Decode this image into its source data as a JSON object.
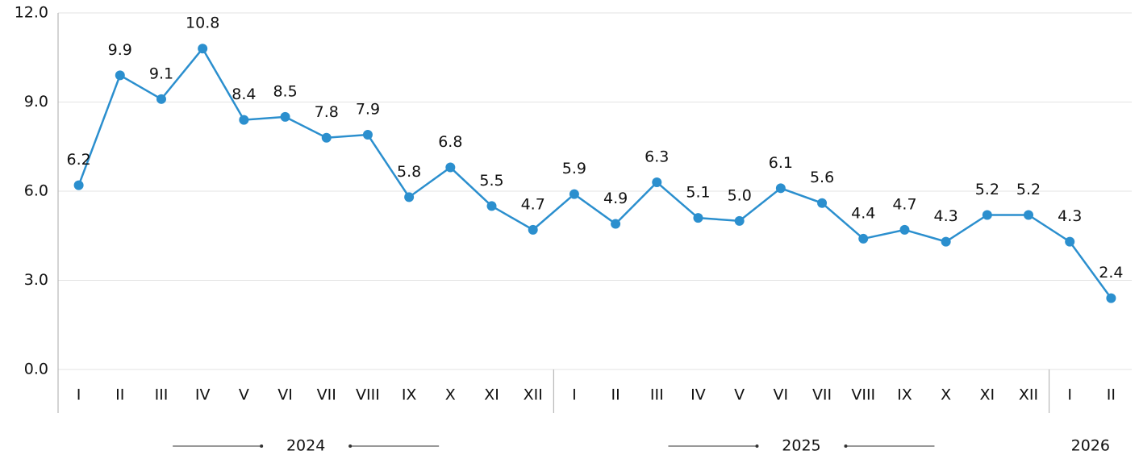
{
  "chart_data": {
    "type": "line",
    "groups": [
      {
        "label": "2024",
        "categories": [
          "I",
          "II",
          "III",
          "IV",
          "V",
          "VI",
          "VII",
          "VIII",
          "IX",
          "X",
          "XI",
          "XII"
        ]
      },
      {
        "label": "2025",
        "categories": [
          "I",
          "II",
          "III",
          "IV",
          "V",
          "VI",
          "VII",
          "VIII",
          "IX",
          "X",
          "XI",
          "XII"
        ]
      },
      {
        "label": "2026",
        "categories": [
          "I",
          "II"
        ]
      }
    ],
    "values": [
      6.2,
      9.9,
      9.1,
      10.8,
      8.4,
      8.5,
      7.8,
      7.9,
      5.8,
      6.8,
      5.5,
      4.7,
      5.9,
      4.9,
      6.3,
      5.1,
      5.0,
      6.1,
      5.6,
      4.4,
      4.7,
      4.3,
      5.2,
      5.2,
      4.3,
      2.4
    ],
    "value_labels": [
      "6.2",
      "9.9",
      "9.1",
      "10.8",
      "8.4",
      "8.5",
      "7.8",
      "7.9",
      "5.8",
      "6.8",
      "5.5",
      "4.7",
      "5.9",
      "4.9",
      "6.3",
      "5.1",
      "5.0",
      "6.1",
      "5.6",
      "4.4",
      "4.7",
      "4.3",
      "5.2",
      "5.2",
      "4.3",
      "2.4"
    ],
    "color": "#2b8fce",
    "ylim": [
      0,
      12
    ],
    "yticks": [
      {
        "value": 0,
        "label": "0.0"
      },
      {
        "value": 3,
        "label": "3.0"
      },
      {
        "value": 6,
        "label": "6.0"
      },
      {
        "value": 9,
        "label": "9.0"
      },
      {
        "value": 12,
        "label": "12.0"
      }
    ],
    "grid": true
  }
}
